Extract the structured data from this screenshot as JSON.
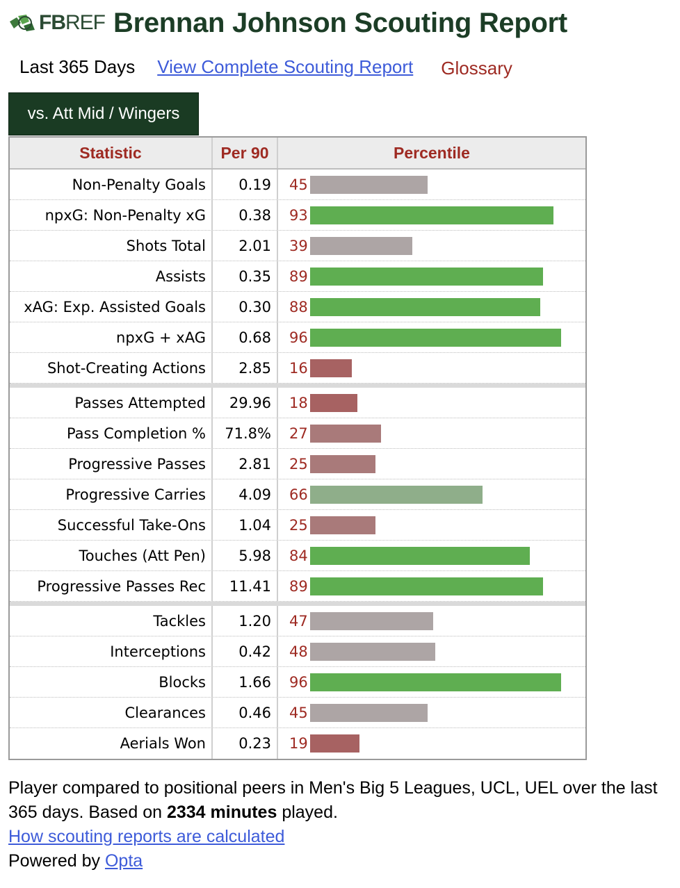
{
  "header": {
    "logo_text_a": "FB",
    "logo_text_b": "REF",
    "title": "Brennan Johnson Scouting Report"
  },
  "subnav": {
    "period": "Last 365 Days",
    "complete_link": "View Complete Scouting Report",
    "glossary": "Glossary"
  },
  "tab": {
    "label": "vs. Att Mid / Wingers"
  },
  "table": {
    "headers": {
      "statistic": "Statistic",
      "per90": "Per 90",
      "percentile": "Percentile"
    },
    "groups": [
      [
        {
          "stat": "Non-Penalty Goals",
          "per90": "0.19",
          "pct": 45
        },
        {
          "stat": "npxG: Non-Penalty xG",
          "per90": "0.38",
          "pct": 93
        },
        {
          "stat": "Shots Total",
          "per90": "2.01",
          "pct": 39
        },
        {
          "stat": "Assists",
          "per90": "0.35",
          "pct": 89
        },
        {
          "stat": "xAG: Exp. Assisted Goals",
          "per90": "0.30",
          "pct": 88
        },
        {
          "stat": "npxG + xAG",
          "per90": "0.68",
          "pct": 96
        },
        {
          "stat": "Shot-Creating Actions",
          "per90": "2.85",
          "pct": 16
        }
      ],
      [
        {
          "stat": "Passes Attempted",
          "per90": "29.96",
          "pct": 18
        },
        {
          "stat": "Pass Completion %",
          "per90": "71.8%",
          "pct": 27
        },
        {
          "stat": "Progressive Passes",
          "per90": "2.81",
          "pct": 25
        },
        {
          "stat": "Progressive Carries",
          "per90": "4.09",
          "pct": 66
        },
        {
          "stat": "Successful Take-Ons",
          "per90": "1.04",
          "pct": 25
        },
        {
          "stat": "Touches (Att Pen)",
          "per90": "5.98",
          "pct": 84
        },
        {
          "stat": "Progressive Passes Rec",
          "per90": "11.41",
          "pct": 89
        }
      ],
      [
        {
          "stat": "Tackles",
          "per90": "1.20",
          "pct": 47
        },
        {
          "stat": "Interceptions",
          "per90": "0.42",
          "pct": 48
        },
        {
          "stat": "Blocks",
          "per90": "1.66",
          "pct": 96
        },
        {
          "stat": "Clearances",
          "per90": "0.46",
          "pct": 45
        },
        {
          "stat": "Aerials Won",
          "per90": "0.23",
          "pct": 19
        }
      ]
    ]
  },
  "colors": {
    "high": "#5fae51",
    "mid_high": "#8fae8a",
    "mid": "#ada5a5",
    "mid_low": "#a97a7a",
    "low": "#a76262"
  },
  "footer": {
    "line1_a": "Player compared to positional peers in Men's Big 5 Leagues, UCL, UEL over the last 365 days. Based on ",
    "minutes": "2334 minutes",
    "line1_b": " played.",
    "how_link": "How scouting reports are calculated",
    "powered_by": "Powered by ",
    "opta_link": "Opta"
  }
}
